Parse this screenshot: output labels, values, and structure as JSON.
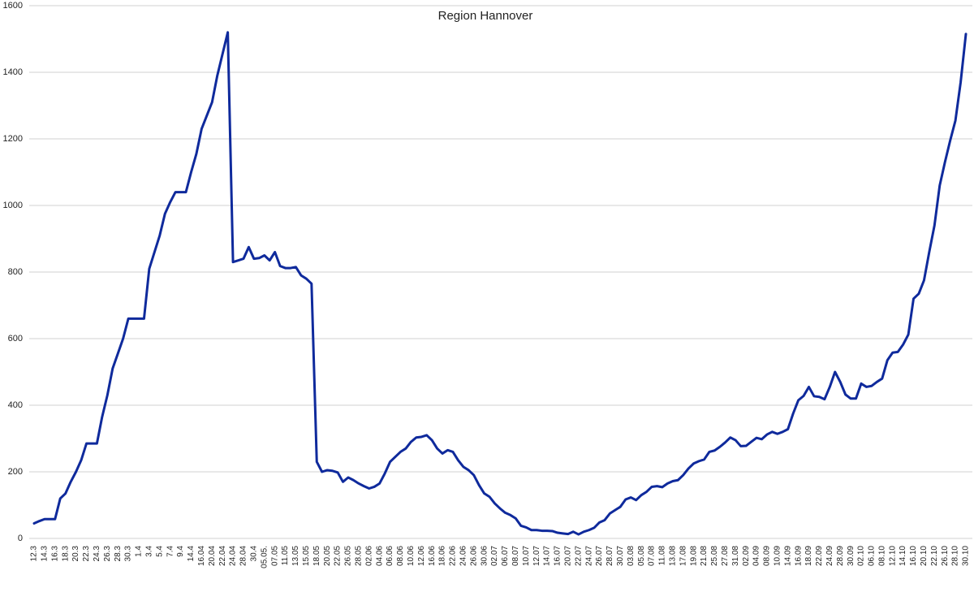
{
  "chart_data": {
    "type": "line",
    "title": "Region Hannover",
    "categories": [
      "12.3",
      null,
      "14.3",
      null,
      "16.3",
      null,
      "18.3",
      null,
      "20.3",
      null,
      "22.3",
      null,
      "24.3",
      null,
      "26.3",
      null,
      "28.3",
      null,
      "30.3",
      null,
      "1.4",
      null,
      "3.4",
      null,
      "5.4",
      null,
      "7.4",
      null,
      "9.4",
      null,
      "14.4",
      null,
      "16.04",
      null,
      "20.04",
      null,
      "22.04",
      null,
      "24.04",
      null,
      "28.04",
      null,
      "30.4",
      null,
      "05.05.",
      null,
      "07.05",
      null,
      "11.05",
      null,
      "13.05",
      null,
      "15.05",
      null,
      "18.05",
      null,
      "20.05",
      null,
      "22.05",
      null,
      "26.05",
      null,
      "28.05",
      null,
      "02.06",
      null,
      "04.06",
      null,
      "06.06",
      null,
      "08.06",
      null,
      "10.06",
      null,
      "12.06",
      null,
      "16.06",
      null,
      "18.06",
      null,
      "22.06",
      null,
      "24.06",
      null,
      "26.06",
      null,
      "30.06",
      null,
      "02.07",
      null,
      "06.07",
      null,
      "08.07",
      null,
      "10.07",
      null,
      "12.07",
      null,
      "14.07",
      null,
      "16.07",
      null,
      "20.07",
      null,
      "22.07",
      null,
      "24.07",
      null,
      "26.07",
      null,
      "28.07",
      null,
      "30.07",
      null,
      "03.08",
      null,
      "05.08",
      null,
      "07.08",
      null,
      "11.08",
      null,
      "13.08",
      null,
      "17.08",
      null,
      "19.08",
      null,
      "21.08",
      null,
      "25.08",
      null,
      "27.08",
      null,
      "31.08",
      null,
      "02.09",
      null,
      "04.09",
      null,
      "08.09",
      null,
      "10.09",
      null,
      "14.09",
      null,
      "16.09",
      null,
      "18.09",
      null,
      "22.09",
      null,
      "24.09",
      null,
      "28.09",
      null,
      "30.09",
      null,
      "02.10",
      null,
      "06.10",
      null,
      "08.10",
      null,
      "12.10",
      null,
      "14.10",
      null,
      "16.10",
      null,
      "20.10",
      null,
      "22.10",
      null,
      "26.10",
      null,
      "28.10",
      null,
      "30.10"
    ],
    "values": [
      45,
      52,
      58,
      58,
      58,
      120,
      135,
      170,
      200,
      235,
      285,
      285,
      285,
      365,
      430,
      510,
      555,
      600,
      660,
      660,
      660,
      660,
      810,
      860,
      910,
      975,
      1010,
      1040,
      1040,
      1040,
      1100,
      1155,
      1230,
      1270,
      1310,
      1390,
      1455,
      1520,
      830,
      835,
      840,
      875,
      840,
      842,
      850,
      835,
      860,
      818,
      812,
      812,
      815,
      790,
      780,
      765,
      230,
      200,
      205,
      203,
      198,
      170,
      183,
      175,
      165,
      157,
      150,
      155,
      165,
      195,
      230,
      245,
      260,
      270,
      290,
      303,
      305,
      310,
      295,
      270,
      255,
      265,
      260,
      235,
      215,
      205,
      190,
      160,
      135,
      125,
      105,
      90,
      77,
      70,
      60,
      38,
      33,
      25,
      25,
      23,
      23,
      22,
      17,
      15,
      13,
      20,
      12,
      20,
      25,
      32,
      48,
      55,
      75,
      85,
      95,
      117,
      123,
      115,
      130,
      140,
      155,
      157,
      154,
      165,
      172,
      175,
      190,
      210,
      225,
      232,
      237,
      260,
      264,
      275,
      288,
      303,
      295,
      277,
      278,
      290,
      302,
      298,
      312,
      320,
      314,
      320,
      328,
      375,
      415,
      428,
      455,
      427,
      425,
      418,
      455,
      500,
      470,
      432,
      420,
      420,
      465,
      455,
      458,
      470,
      480,
      535,
      558,
      560,
      582,
      612,
      720,
      735,
      775,
      860,
      940,
      1060,
      1130,
      1195,
      1255,
      1370,
      1515
    ],
    "color": "#0f2a9c",
    "ylim": [
      0,
      1600
    ],
    "yticks": [
      0,
      200,
      400,
      600,
      800,
      1000,
      1200,
      1400,
      1600
    ],
    "grid": true
  }
}
